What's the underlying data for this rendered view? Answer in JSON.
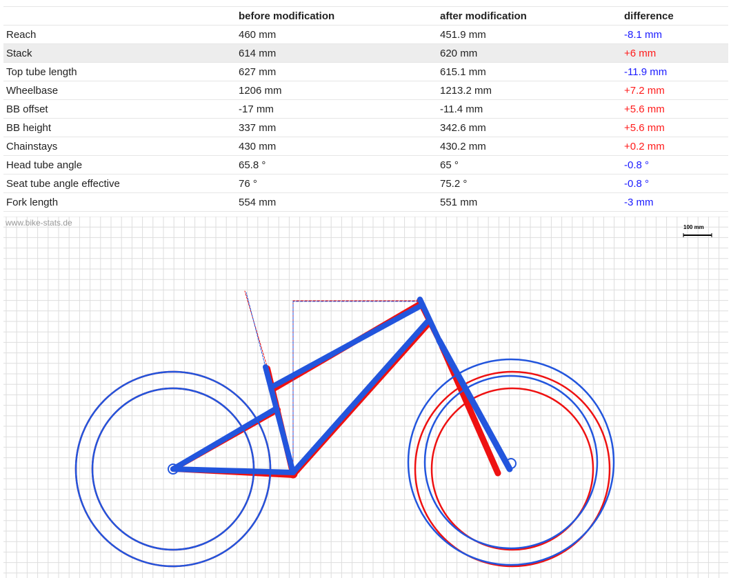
{
  "table": {
    "headers": [
      "",
      "before modification",
      "after modification",
      "difference"
    ],
    "rows": [
      {
        "label": "Reach",
        "before": "460 mm",
        "after": "451.9 mm",
        "diff": "-8.1 mm",
        "sign": "neg"
      },
      {
        "label": "Stack",
        "before": "614 mm",
        "after": "620 mm",
        "diff": "+6 mm",
        "sign": "pos"
      },
      {
        "label": "Top tube length",
        "before": "627 mm",
        "after": "615.1 mm",
        "diff": "-11.9 mm",
        "sign": "neg"
      },
      {
        "label": "Wheelbase",
        "before": "1206 mm",
        "after": "1213.2 mm",
        "diff": "+7.2 mm",
        "sign": "pos"
      },
      {
        "label": "BB offset",
        "before": "-17 mm",
        "after": "-11.4 mm",
        "diff": "+5.6 mm",
        "sign": "pos"
      },
      {
        "label": "BB height",
        "before": "337 mm",
        "after": "342.6 mm",
        "diff": "+5.6 mm",
        "sign": "pos"
      },
      {
        "label": "Chainstays",
        "before": "430 mm",
        "after": "430.2 mm",
        "diff": "+0.2 mm",
        "sign": "pos"
      },
      {
        "label": "Head tube angle",
        "before": "65.8 °",
        "after": "65 °",
        "diff": "-0.8 °",
        "sign": "neg"
      },
      {
        "label": "Seat tube angle effective",
        "before": "76 °",
        "after": "75.2 °",
        "diff": "-0.8 °",
        "sign": "neg"
      },
      {
        "label": "Fork length",
        "before": "554 mm",
        "after": "551 mm",
        "diff": "-3 mm",
        "sign": "neg"
      }
    ],
    "highlight_row": "Stack"
  },
  "drawing": {
    "watermark": "www.bike-stats.de",
    "scale_label": "100 mm",
    "colors": {
      "before": "#ee1111",
      "after": "#2255dd",
      "grid": "#dddddd",
      "positive": "#ff1a1a",
      "negative": "#1a1aff"
    }
  }
}
